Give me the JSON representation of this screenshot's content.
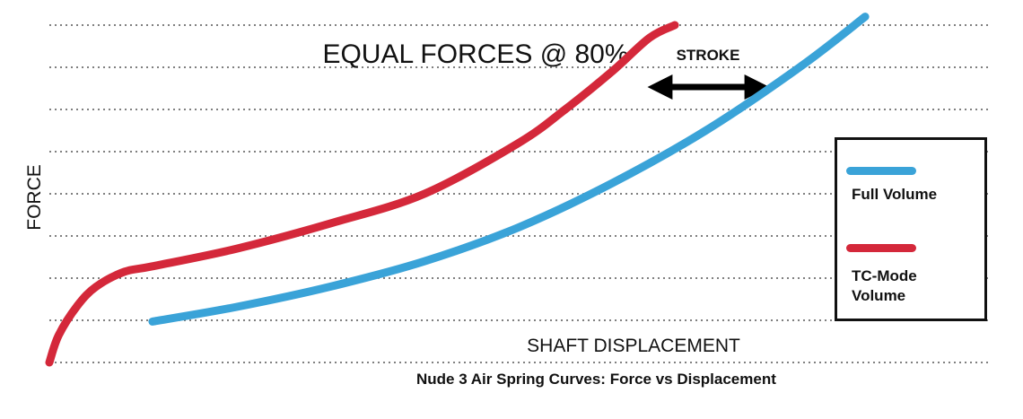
{
  "chart_data": {
    "type": "line",
    "title": "Nude 3 Air Spring Curves: Force vs Displacement",
    "annotation": "EQUAL FORCES @ 80%",
    "stroke_label": "STROKE",
    "xlabel": "SHAFT DISPLACEMENT",
    "ylabel": "FORCE",
    "grid": "horizontal dotted",
    "legend_position": "right",
    "series": [
      {
        "name": "Full Volume",
        "color": "#3aa3d8",
        "x": [
          0.11,
          0.2,
          0.3,
          0.4,
          0.5,
          0.6,
          0.7,
          0.8,
          0.87
        ],
        "y": [
          0.97,
          1.32,
          1.8,
          2.4,
          3.2,
          4.25,
          5.5,
          7.0,
          8.2
        ]
      },
      {
        "name": "TC-Mode Volume",
        "color": "#d4283a",
        "x": [
          0.0,
          0.01,
          0.03,
          0.05,
          0.08,
          0.11,
          0.2,
          0.3,
          0.4,
          0.5,
          0.55,
          0.6,
          0.64,
          0.667
        ],
        "y": [
          0.0,
          0.65,
          1.35,
          1.8,
          2.15,
          2.28,
          2.7,
          3.3,
          4.0,
          5.2,
          6.0,
          6.9,
          7.7,
          8.0
        ]
      }
    ]
  },
  "legend": {
    "full_volume": "Full Volume",
    "tc_mode_line1": "TC-Mode",
    "tc_mode_line2": "Volume"
  }
}
